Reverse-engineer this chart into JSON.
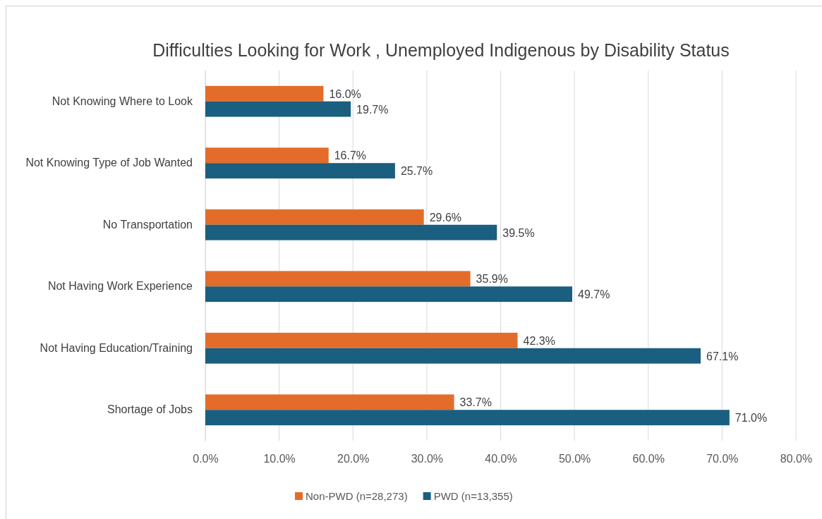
{
  "chart_data": {
    "type": "bar",
    "orientation": "horizontal",
    "title": "Difficulties Looking for Work , Unemployed Indigenous by Disability Status",
    "categories": [
      "Not Knowing Where to Look",
      "Not Knowing Type of Job Wanted",
      "No Transportation",
      "Not Having Work Experience",
      "Not Having Education/Training",
      "Shortage of Jobs"
    ],
    "series": [
      {
        "name": "Non-PWD (n=28,273)",
        "color": "#e46c2a",
        "values": [
          16.0,
          16.7,
          29.6,
          35.9,
          42.3,
          33.7
        ],
        "value_labels": [
          "16.0%",
          "16.7%",
          "29.6%",
          "35.9%",
          "42.3%",
          "33.7%"
        ]
      },
      {
        "name": "PWD (n=13,355)",
        "color": "#1a5e80",
        "values": [
          19.7,
          25.7,
          39.5,
          49.7,
          67.1,
          71.0
        ],
        "value_labels": [
          "19.7%",
          "25.7%",
          "39.5%",
          "49.7%",
          "67.1%",
          "71.0%"
        ]
      }
    ],
    "xlim": [
      0,
      80
    ],
    "xticks": [
      {
        "value": 0,
        "label": "0.0%"
      },
      {
        "value": 10,
        "label": "10.0%"
      },
      {
        "value": 20,
        "label": "20.0%"
      },
      {
        "value": 30,
        "label": "30.0%"
      },
      {
        "value": 40,
        "label": "40.0%"
      },
      {
        "value": 50,
        "label": "50.0%"
      },
      {
        "value": 60,
        "label": "60.0%"
      },
      {
        "value": 70,
        "label": "70.0%"
      },
      {
        "value": 80,
        "label": "80.0%"
      }
    ],
    "grid": "x",
    "legend": "bottom"
  }
}
